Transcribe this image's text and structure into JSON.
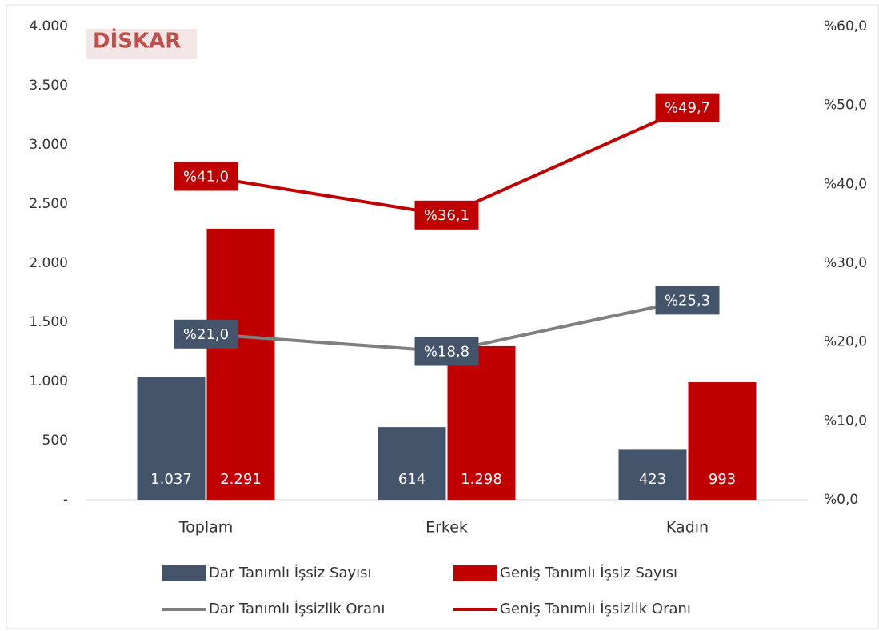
{
  "chart_data": {
    "type": "bar",
    "logo": "DİSKAR",
    "categories": [
      "Toplam",
      "Erkek",
      "Kadın"
    ],
    "series": [
      {
        "name": "Dar Tanımlı İşsiz Sayısı",
        "type": "bar",
        "color": "#44546a",
        "values": [
          1037,
          614,
          423
        ],
        "value_labels": [
          "1.037",
          "614",
          "423"
        ]
      },
      {
        "name": "Geniş Tanımlı İşsiz Sayısı",
        "type": "bar",
        "color": "#c00000",
        "values": [
          2291,
          1298,
          993
        ],
        "value_labels": [
          "2.291",
          "1.298",
          "993"
        ]
      },
      {
        "name": "Dar Tanımlı İşsizlik Oranı",
        "type": "line",
        "axis": "y2",
        "color": "#7f7f7f",
        "label_color": "#44546a",
        "values": [
          21.0,
          18.8,
          25.3
        ],
        "value_labels": [
          "%21,0",
          "%18,8",
          "%25,3"
        ]
      },
      {
        "name": "Geniş Tanımlı İşsizlik Oranı",
        "type": "line",
        "axis": "y2",
        "color": "#c00000",
        "label_color": "#c00000",
        "values": [
          41.0,
          36.1,
          49.7
        ],
        "value_labels": [
          "%41,0",
          "%36,1",
          "%49,7"
        ]
      }
    ],
    "ylim": [
      0,
      4000
    ],
    "yticks": [
      {
        "value": 0,
        "label": "-"
      },
      500,
      {
        "value": 1000,
        "label": "1.000"
      },
      {
        "value": 1500,
        "label": "1.500"
      },
      {
        "value": 2000,
        "label": "2.000"
      },
      {
        "value": 2500,
        "label": "2.500"
      },
      {
        "value": 3000,
        "label": "3.000"
      },
      {
        "value": 3500,
        "label": "3.500"
      },
      {
        "value": 4000,
        "label": "4.000"
      }
    ],
    "y2lim": [
      0,
      60
    ],
    "y2ticks": [
      {
        "value": 0,
        "label": "%0,0"
      },
      {
        "value": 10,
        "label": "%10,0"
      },
      {
        "value": 20,
        "label": "%20,0"
      },
      {
        "value": 30,
        "label": "%30,0"
      },
      {
        "value": 40,
        "label": "%40,0"
      },
      {
        "value": 50,
        "label": "%50,0"
      },
      {
        "value": 60,
        "label": "%60,0"
      }
    ],
    "grid": false
  }
}
